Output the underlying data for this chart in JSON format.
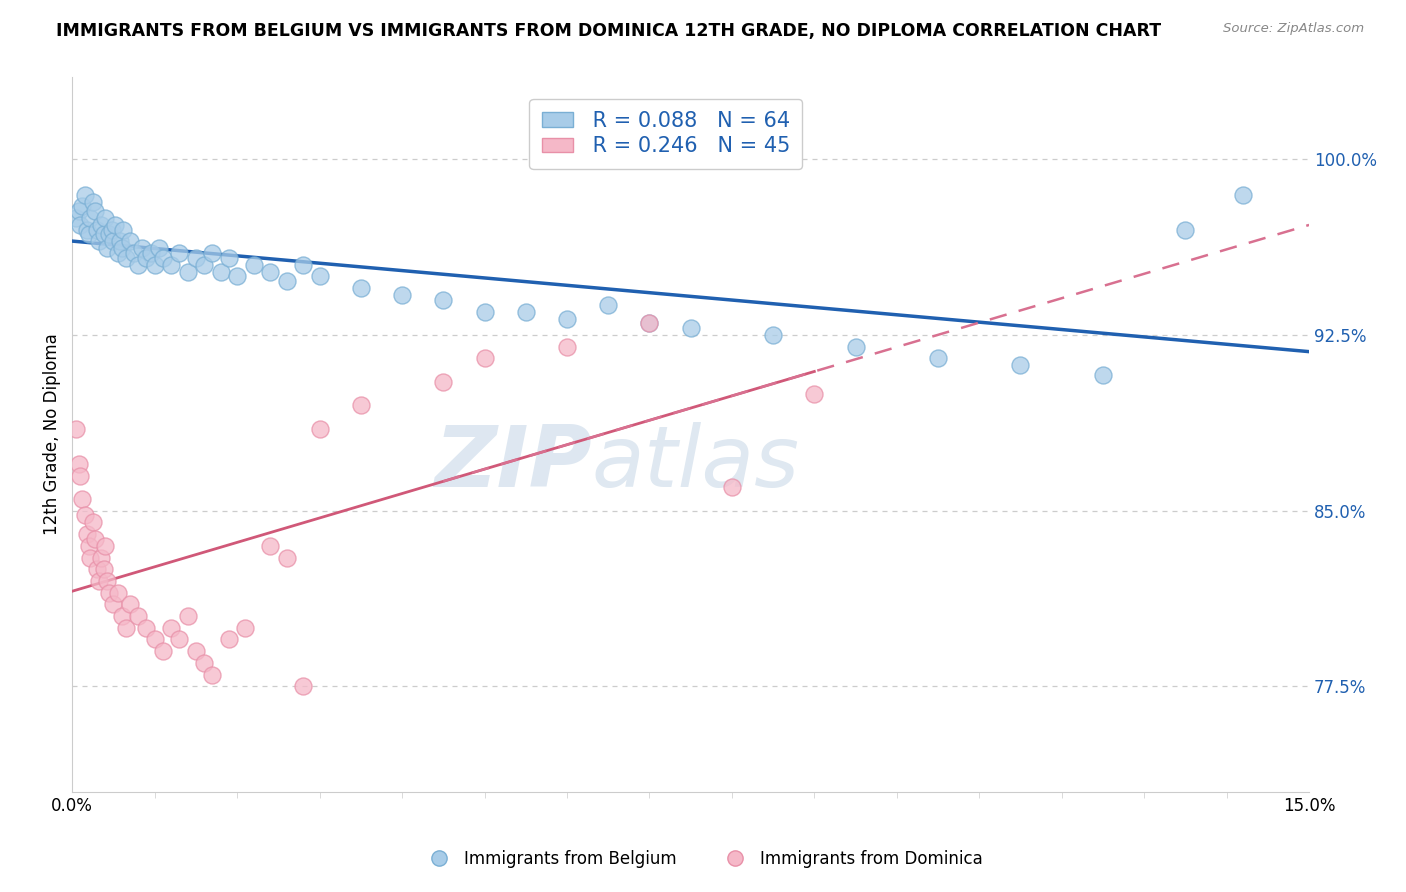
{
  "title": "IMMIGRANTS FROM BELGIUM VS IMMIGRANTS FROM DOMINICA 12TH GRADE, NO DIPLOMA CORRELATION CHART",
  "source": "Source: ZipAtlas.com",
  "ylabel": "12th Grade, No Diploma",
  "legend_belgium": "Immigrants from Belgium",
  "legend_dominica": "Immigrants from Dominica",
  "R_belgium": 0.088,
  "N_belgium": 64,
  "R_dominica": 0.246,
  "N_dominica": 45,
  "blue_scatter_color": "#a8cce8",
  "blue_scatter_edge": "#7aafd4",
  "pink_scatter_color": "#f5b8c8",
  "pink_scatter_edge": "#e890a8",
  "blue_line_color": "#2060b0",
  "pink_line_color": "#d05878",
  "pink_dash_color": "#d87090",
  "xlim": [
    0.0,
    15.0
  ],
  "ylim": [
    73.0,
    103.5
  ],
  "yticks": [
    77.5,
    85.0,
    92.5,
    100.0
  ],
  "ytick_labels": [
    "77.5%",
    "85.0%",
    "92.5%",
    "100.0%"
  ],
  "background_color": "#ffffff",
  "watermark_zip": "ZIP",
  "watermark_atlas": "atlas",
  "bel_x": [
    0.05,
    0.08,
    0.1,
    0.12,
    0.15,
    0.18,
    0.2,
    0.22,
    0.25,
    0.28,
    0.3,
    0.32,
    0.35,
    0.38,
    0.4,
    0.42,
    0.45,
    0.48,
    0.5,
    0.52,
    0.55,
    0.58,
    0.6,
    0.62,
    0.65,
    0.7,
    0.75,
    0.8,
    0.85,
    0.9,
    0.95,
    1.0,
    1.05,
    1.1,
    1.2,
    1.3,
    1.4,
    1.5,
    1.6,
    1.7,
    1.8,
    1.9,
    2.0,
    2.2,
    2.4,
    2.6,
    2.8,
    3.0,
    3.5,
    4.0,
    5.5,
    6.5,
    7.5,
    8.5,
    9.5,
    10.5,
    11.5,
    12.5,
    13.5,
    14.2,
    4.5,
    5.0,
    6.0,
    7.0
  ],
  "bel_y": [
    97.5,
    97.8,
    97.2,
    98.0,
    98.5,
    97.0,
    96.8,
    97.5,
    98.2,
    97.8,
    97.0,
    96.5,
    97.2,
    96.8,
    97.5,
    96.2,
    96.8,
    97.0,
    96.5,
    97.2,
    96.0,
    96.5,
    96.2,
    97.0,
    95.8,
    96.5,
    96.0,
    95.5,
    96.2,
    95.8,
    96.0,
    95.5,
    96.2,
    95.8,
    95.5,
    96.0,
    95.2,
    95.8,
    95.5,
    96.0,
    95.2,
    95.8,
    95.0,
    95.5,
    95.2,
    94.8,
    95.5,
    95.0,
    94.5,
    94.2,
    93.5,
    93.8,
    92.8,
    92.5,
    92.0,
    91.5,
    91.2,
    90.8,
    97.0,
    98.5,
    94.0,
    93.5,
    93.2,
    93.0
  ],
  "dom_x": [
    0.05,
    0.08,
    0.1,
    0.12,
    0.15,
    0.18,
    0.2,
    0.22,
    0.25,
    0.28,
    0.3,
    0.32,
    0.35,
    0.38,
    0.4,
    0.42,
    0.45,
    0.5,
    0.55,
    0.6,
    0.65,
    0.7,
    0.8,
    0.9,
    1.0,
    1.1,
    1.2,
    1.3,
    1.4,
    1.5,
    1.6,
    1.7,
    1.9,
    2.1,
    2.4,
    2.6,
    3.0,
    3.5,
    4.5,
    5.0,
    6.0,
    7.0,
    8.0,
    9.0,
    2.8
  ],
  "dom_y": [
    88.5,
    87.0,
    86.5,
    85.5,
    84.8,
    84.0,
    83.5,
    83.0,
    84.5,
    83.8,
    82.5,
    82.0,
    83.0,
    82.5,
    83.5,
    82.0,
    81.5,
    81.0,
    81.5,
    80.5,
    80.0,
    81.0,
    80.5,
    80.0,
    79.5,
    79.0,
    80.0,
    79.5,
    80.5,
    79.0,
    78.5,
    78.0,
    79.5,
    80.0,
    83.5,
    83.0,
    88.5,
    89.5,
    90.5,
    91.5,
    92.0,
    93.0,
    86.0,
    90.0,
    77.5
  ]
}
